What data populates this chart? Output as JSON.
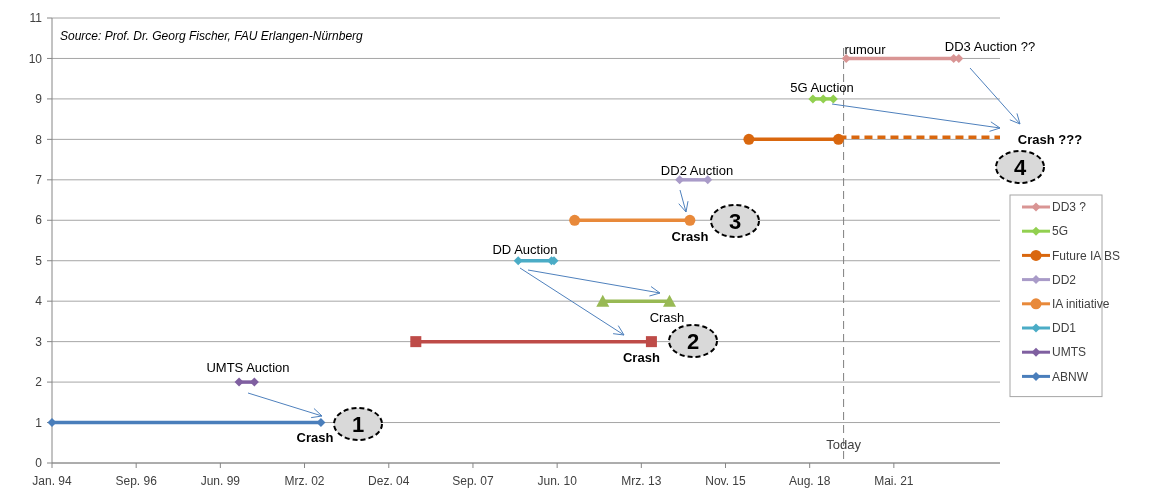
{
  "chart_data": {
    "type": "line",
    "xlim": [
      "1994-01-01",
      "2024-11-01"
    ],
    "xticks": [
      {
        "value": "1994-01-01",
        "label": "Jan. 94"
      },
      {
        "value": "1996-09-27",
        "label": "Sep. 96"
      },
      {
        "value": "1999-06-24",
        "label": "Jun. 99"
      },
      {
        "value": "2002-03-20",
        "label": "Mrz. 02"
      },
      {
        "value": "2004-12-15",
        "label": "Dez. 04"
      },
      {
        "value": "2007-09-11",
        "label": "Sep. 07"
      },
      {
        "value": "2010-06-07",
        "label": "Jun. 10"
      },
      {
        "value": "2013-03-03",
        "label": "Mrz. 13"
      },
      {
        "value": "2015-11-28",
        "label": "Nov. 15"
      },
      {
        "value": "2018-08-24",
        "label": "Aug. 18"
      },
      {
        "value": "2021-05-20",
        "label": "Mai. 21"
      }
    ],
    "ylim": [
      0,
      11
    ],
    "yticks": [
      0,
      1,
      2,
      3,
      4,
      5,
      6,
      7,
      8,
      9,
      10,
      11
    ],
    "grid": "y",
    "legend": "right",
    "series": [
      {
        "name": "DD3 ?",
        "color": "#d99594",
        "marker": "diamond",
        "x": [
          "2019-11",
          "2023-05",
          "2023-07"
        ],
        "values": [
          10,
          10,
          10
        ]
      },
      {
        "name": "5G",
        "color": "#92d050",
        "marker": "diamond",
        "x": [
          "2018-10",
          "2019-02",
          "2019-06"
        ],
        "values": [
          9,
          9,
          9
        ]
      },
      {
        "name": "Future IA BS",
        "color": "#d9670e",
        "marker": "circle",
        "x": [
          "2016-09",
          "2019-08"
        ],
        "values": [
          8,
          8
        ]
      },
      {
        "color": "#d9670e",
        "marker": "none",
        "line_style": "dashed",
        "x": [
          "2019-08",
          "2024-11"
        ],
        "values": [
          8.05,
          8.05
        ]
      },
      {
        "name": "DD2",
        "color": "#a99bc8",
        "marker": "diamond",
        "x": [
          "2014-06",
          "2015-05"
        ],
        "values": [
          7,
          7
        ]
      },
      {
        "name": "IA initiative",
        "color": "#e8893a",
        "marker": "circle",
        "x": [
          "2011-01",
          "2014-10"
        ],
        "values": [
          6,
          6
        ]
      },
      {
        "name": "DD1",
        "color": "#4bacc6",
        "marker": "diamond",
        "x": [
          "2009-03",
          "2010-04",
          "2010-05"
        ],
        "values": [
          5,
          5,
          5
        ]
      },
      {
        "color": "#98b954",
        "marker": "triangle",
        "x": [
          "2011-12",
          "2014-02"
        ],
        "values": [
          4,
          4
        ]
      },
      {
        "color": "#be4b48",
        "marker": "square",
        "x": [
          "2005-11",
          "2013-07"
        ],
        "values": [
          3,
          3
        ]
      },
      {
        "name": "UMTS",
        "color": "#7f5fa0",
        "marker": "diamond",
        "x": [
          "2000-02",
          "2000-08"
        ],
        "values": [
          2,
          2
        ]
      },
      {
        "name": "ABNW",
        "color": "#4a7ebb",
        "marker": "diamond",
        "x": [
          "1994-01",
          "2002-10"
        ],
        "values": [
          1,
          1
        ]
      }
    ],
    "ref_lines": [
      {
        "axis": "x",
        "value": "2019-10",
        "label": "Today",
        "color": "#7f7f7f",
        "line_style": "dashed"
      }
    ],
    "annotations": [
      "Source: Prof. Dr. Georg Fischer, FAU Erlangen-Nürnberg",
      "UMTS Auction",
      "Crash",
      "1",
      "DD Auction",
      "Crash",
      {
        "text": "Crash",
        "x": "2013-07",
        "y": 3
      },
      "2",
      "DD2 Auction",
      "Crash",
      "3",
      "5G Auction",
      "rumour",
      "DD3 Auction ??",
      "Crash ???",
      "4"
    ]
  }
}
